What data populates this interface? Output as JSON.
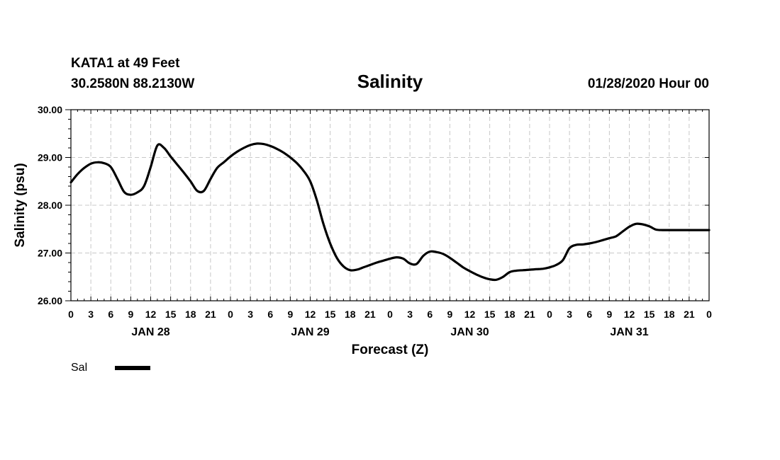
{
  "chart_data": {
    "type": "line",
    "station_title": "KATA1 at 49 Feet",
    "location": "30.2580N 88.2130W",
    "title": "Salinity",
    "forecast_time": "01/28/2020 Hour 00",
    "xlabel": "Forecast (Z)",
    "ylabel": "Salinity (psu)",
    "ylim": [
      26.0,
      30.0
    ],
    "xlim": [
      0,
      96
    ],
    "yticks": [
      "26.00",
      "27.00",
      "28.00",
      "29.00",
      "30.00"
    ],
    "xtick_labels": [
      "0",
      "3",
      "6",
      "9",
      "12",
      "15",
      "18",
      "21",
      "0",
      "3",
      "6",
      "9",
      "12",
      "15",
      "18",
      "21",
      "0",
      "3",
      "6",
      "9",
      "12",
      "15",
      "18",
      "21",
      "0",
      "3",
      "6",
      "9",
      "12",
      "15",
      "18",
      "21",
      "0"
    ],
    "day_labels": [
      {
        "hour": 12,
        "label": "JAN 28"
      },
      {
        "hour": 36,
        "label": "JAN 29"
      },
      {
        "hour": 60,
        "label": "JAN 30"
      },
      {
        "hour": 84,
        "label": "JAN 31"
      }
    ],
    "grid": true,
    "series": [
      {
        "name": "Sal",
        "color": "#000000",
        "x": [
          0,
          1,
          2,
          3,
          4,
          5,
          6,
          7,
          8,
          9,
          10,
          11,
          12,
          13,
          14,
          15,
          16,
          17,
          18,
          19,
          20,
          21,
          22,
          23,
          24,
          25,
          26,
          27,
          28,
          29,
          30,
          31,
          32,
          33,
          34,
          35,
          36,
          37,
          38,
          39,
          40,
          41,
          42,
          43,
          44,
          45,
          46,
          47,
          48,
          49,
          50,
          51,
          52,
          53,
          54,
          55,
          56,
          57,
          58,
          59,
          60,
          61,
          62,
          63,
          64,
          65,
          66,
          67,
          68,
          69,
          70,
          71,
          72,
          73,
          74,
          75,
          76,
          77,
          78,
          79,
          80,
          81,
          82,
          83,
          84,
          85,
          86,
          87,
          88,
          89,
          90,
          91,
          92,
          93,
          94,
          95,
          96
        ],
        "y": [
          28.48,
          28.65,
          28.78,
          28.87,
          28.9,
          28.88,
          28.8,
          28.55,
          28.28,
          28.22,
          28.27,
          28.4,
          28.8,
          29.25,
          29.2,
          29.02,
          28.85,
          28.68,
          28.5,
          28.3,
          28.3,
          28.55,
          28.78,
          28.9,
          29.02,
          29.12,
          29.2,
          29.26,
          29.29,
          29.28,
          29.24,
          29.18,
          29.1,
          29.0,
          28.88,
          28.72,
          28.5,
          28.1,
          27.6,
          27.2,
          26.9,
          26.72,
          26.64,
          26.65,
          26.7,
          26.75,
          26.8,
          26.84,
          26.88,
          26.91,
          26.88,
          26.78,
          26.77,
          26.94,
          27.03,
          27.02,
          26.98,
          26.9,
          26.8,
          26.7,
          26.62,
          26.55,
          26.49,
          26.45,
          26.44,
          26.5,
          26.6,
          26.63,
          26.64,
          26.65,
          26.66,
          26.67,
          26.7,
          26.75,
          26.85,
          27.1,
          27.17,
          27.18,
          27.2,
          27.23,
          27.27,
          27.31,
          27.35,
          27.45,
          27.55,
          27.61,
          27.6,
          27.56,
          27.49,
          27.48,
          27.48,
          27.48,
          27.48,
          27.48,
          27.48,
          27.48,
          27.48
        ]
      }
    ],
    "legend": {
      "position": "bottom-left",
      "label": "Sal"
    }
  }
}
